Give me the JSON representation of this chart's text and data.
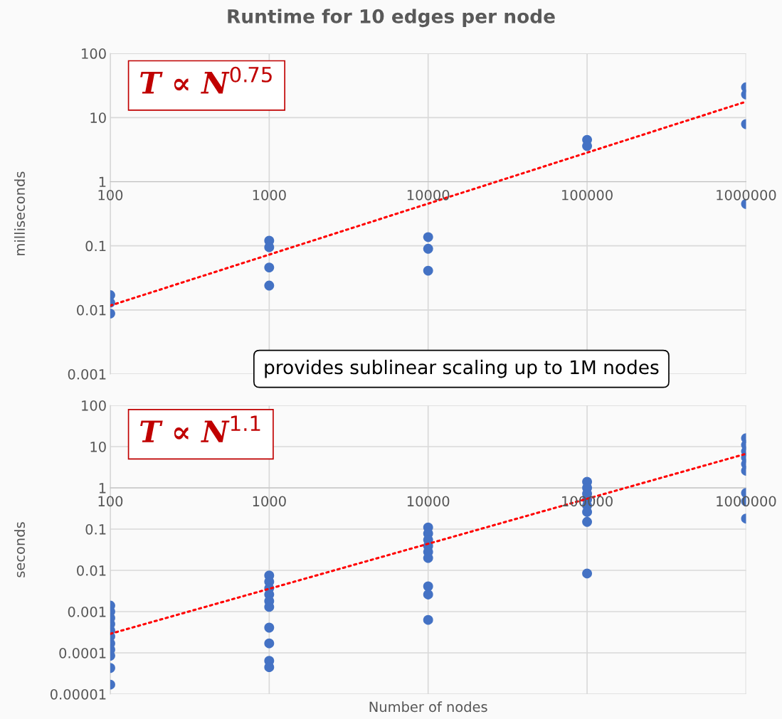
{
  "chart_data": [
    {
      "type": "scatter",
      "title": "Runtime for 10 edges per node",
      "ylabel": "milliseconds",
      "log": "xy",
      "grid": true,
      "marker": "circle",
      "xlim": [
        100,
        1000000
      ],
      "xticks": [
        100,
        1000,
        10000,
        100000,
        1000000
      ],
      "ylim": [
        0.001,
        100
      ],
      "yticks": [
        0.001,
        0.01,
        0.1,
        1,
        10,
        100
      ],
      "annotations": [
        "T ∝ N$^{0.75}$",
        "provides sublinear scaling up to 1M nodes"
      ],
      "series": [
        {
          "color": "#4472c4",
          "x": [
            100,
            100,
            100,
            1000,
            1000,
            1000,
            1000,
            10000,
            10000,
            10000,
            100000,
            100000,
            1000000,
            1000000,
            1000000,
            1000000
          ],
          "values": [
            0.017,
            0.013,
            0.0088,
            0.12,
            0.095,
            0.046,
            0.024,
            0.137,
            0.09,
            0.041,
            4.5,
            3.6,
            29.6,
            22.9,
            7.9,
            0.45
          ]
        },
        {
          "type": "line",
          "color": "#ff0000",
          "line_style": "dotted",
          "marker": "none",
          "x": [
            100,
            1000000
          ],
          "values": [
            0.0117,
            17.7
          ]
        }
      ]
    },
    {
      "type": "scatter",
      "xlabel": "Number of nodes",
      "ylabel": "seconds",
      "log": "xy",
      "grid": true,
      "marker": "circle",
      "xlim": [
        100,
        1000000
      ],
      "xticks": [
        100,
        1000,
        10000,
        100000,
        1000000
      ],
      "ylim": [
        1e-05,
        100
      ],
      "yticks": [
        {
          "value": 1e-05,
          "label": "0.00001"
        },
        0.0001,
        0.001,
        0.01,
        0.1,
        1,
        10,
        100
      ],
      "annotations": [
        "T ∝ N$^{1.1}$"
      ],
      "series": [
        {
          "color": "#4472c4",
          "x": [
            100,
            100,
            100,
            100,
            100,
            100,
            100,
            100,
            100,
            100,
            100,
            1000,
            1000,
            1000,
            1000,
            1000,
            1000,
            1000,
            1000,
            1000,
            1000,
            10000,
            10000,
            10000,
            10000,
            10000,
            10000,
            10000,
            10000,
            10000,
            100000,
            100000,
            100000,
            100000,
            100000,
            100000,
            100000,
            100000,
            1000000,
            1000000,
            1000000,
            1000000,
            1000000,
            1000000,
            1000000,
            1000000,
            1000000
          ],
          "values": [
            0.0014,
            0.001,
            0.0007,
            0.0005,
            0.00035,
            0.00025,
            0.00017,
            0.00012,
            8.5e-05,
            4.3e-05,
            1.7e-05,
            0.0075,
            0.0053,
            0.0037,
            0.0026,
            0.0018,
            0.0013,
            0.00041,
            0.00017,
            6.4e-05,
            4.5e-05,
            0.11,
            0.078,
            0.055,
            0.039,
            0.028,
            0.02,
            0.0041,
            0.0026,
            0.00063,
            1.4,
            1.0,
            0.72,
            0.52,
            0.37,
            0.26,
            0.15,
            0.0084,
            16,
            11,
            7.7,
            5.4,
            3.8,
            2.6,
            0.75,
            0.47,
            0.18
          ]
        },
        {
          "type": "line",
          "color": "#ff0000",
          "line_style": "dotted",
          "marker": "none",
          "x": [
            100,
            1000000
          ],
          "values": [
            0.00029,
            6.7
          ]
        }
      ]
    }
  ]
}
